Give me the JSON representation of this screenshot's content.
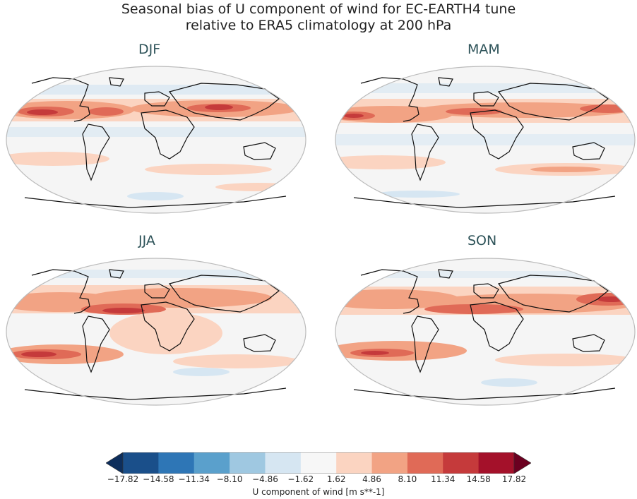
{
  "title": {
    "line1": "Seasonal bias of U component of wind for EC-EARTH4 tune",
    "line2": "relative to ERA5 climatology at 200 hPa"
  },
  "panels": [
    {
      "id": "djf",
      "title": "DJF"
    },
    {
      "id": "mam",
      "title": "MAM"
    },
    {
      "id": "jja",
      "title": "JJA"
    },
    {
      "id": "son",
      "title": "SON"
    }
  ],
  "colorbar": {
    "label": "U component of wind [m s**-1]",
    "ticks": [
      "−17.82",
      "−14.58",
      "−11.34",
      "−8.10",
      "−4.86",
      "−1.62",
      "1.62",
      "4.86",
      "8.10",
      "11.34",
      "14.58",
      "17.82"
    ],
    "colors": [
      "#1a4f8a",
      "#2e76b6",
      "#5aa0cc",
      "#9fc8e1",
      "#d6e6f2",
      "#f7f7f7",
      "#fbd4c1",
      "#f2a384",
      "#e06a57",
      "#c53a3b",
      "#a4112a"
    ],
    "extend_min_color": "#0d2e5c",
    "extend_max_color": "#6b0020"
  },
  "colors": {
    "ocean_neutral": "#f5f5f5",
    "coastline": "#111111",
    "frame": "#bbbbbb",
    "panel_title": "#2e5359"
  }
}
